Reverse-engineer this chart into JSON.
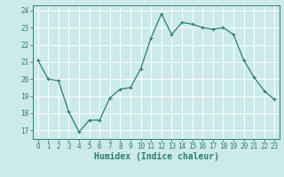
{
  "x": [
    0,
    1,
    2,
    3,
    4,
    5,
    6,
    7,
    8,
    9,
    10,
    11,
    12,
    13,
    14,
    15,
    16,
    17,
    18,
    19,
    20,
    21,
    22,
    23
  ],
  "y": [
    21.1,
    20.0,
    19.9,
    18.1,
    16.9,
    17.6,
    17.6,
    18.9,
    19.4,
    19.5,
    20.6,
    22.4,
    23.8,
    22.6,
    23.3,
    23.2,
    23.0,
    22.9,
    23.0,
    22.6,
    21.1,
    20.1,
    19.3,
    18.8
  ],
  "line_color": "#2e7d6e",
  "marker": "+",
  "marker_size": 3,
  "marker_linewidth": 0.8,
  "bg_color": "#cdeaea",
  "grid_color": "#ffffff",
  "xlabel": "Humidex (Indice chaleur)",
  "ylabel_ticks": [
    17,
    18,
    19,
    20,
    21,
    22,
    23,
    24
  ],
  "xlim": [
    -0.5,
    23.5
  ],
  "ylim": [
    16.5,
    24.3
  ],
  "tick_color": "#2e7d6e",
  "label_color": "#2e7d6e",
  "line_width": 0.9,
  "tick_fontsize": 5.5,
  "xlabel_fontsize": 7.0
}
